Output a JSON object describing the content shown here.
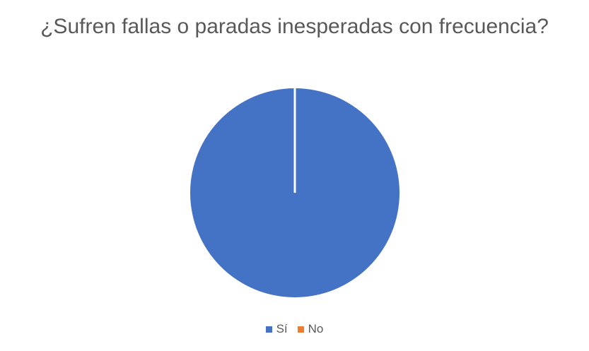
{
  "chart_data": {
    "type": "pie",
    "title": "¿Sufren fallas o paradas inesperadas con frecuencia?",
    "categories": [
      "Sí",
      "No"
    ],
    "values": [
      100,
      0
    ],
    "colors": [
      "#4472C4",
      "#ED7D31"
    ],
    "legend_position": "bottom"
  }
}
